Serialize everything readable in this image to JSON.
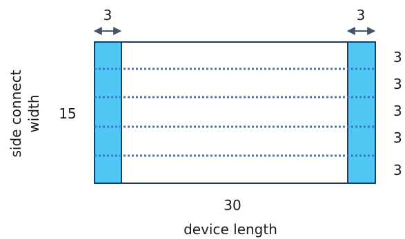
{
  "diagram": {
    "contact_left_width": "3",
    "contact_right_width": "3",
    "height_value": "15",
    "width_axis_label_line1": "side connect",
    "width_axis_label_line2": "width",
    "length_value": "30",
    "length_label": "device length",
    "segment_labels": [
      "3",
      "3",
      "3",
      "3",
      "3"
    ],
    "colors": {
      "contact_fill": "#4fc8f5",
      "outline": "#1f3864",
      "dotted_line": "#4472c4",
      "arrow": "#44546a"
    }
  }
}
